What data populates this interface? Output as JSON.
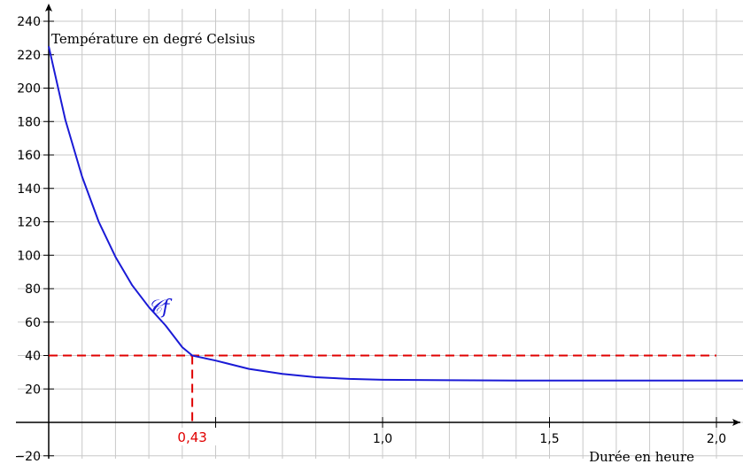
{
  "chart_data": {
    "type": "line",
    "title": "",
    "xlabel": "Durée en heure",
    "ylabel": "Température en degré Celsius",
    "xlim": [
      0,
      2.1
    ],
    "ylim": [
      -20,
      240
    ],
    "grid": true,
    "x_ticks": [
      {
        "value": 0.5,
        "label": ""
      },
      {
        "value": 1.0,
        "label": "1,0"
      },
      {
        "value": 1.5,
        "label": "1,5"
      },
      {
        "value": 2.0,
        "label": "2,0"
      }
    ],
    "y_ticks": [
      {
        "value": -20,
        "label": "−20"
      },
      {
        "value": 20,
        "label": "20"
      },
      {
        "value": 40,
        "label": "40"
      },
      {
        "value": 60,
        "label": "60"
      },
      {
        "value": 80,
        "label": "80"
      },
      {
        "value": 100,
        "label": "100"
      },
      {
        "value": 120,
        "label": "120"
      },
      {
        "value": 140,
        "label": "140"
      },
      {
        "value": 160,
        "label": "160"
      },
      {
        "value": 180,
        "label": "180"
      },
      {
        "value": 200,
        "label": "200"
      },
      {
        "value": 220,
        "label": "220"
      },
      {
        "value": 240,
        "label": "240"
      }
    ],
    "series": [
      {
        "name": "𝒞f",
        "color": "#1a1ad6",
        "x": [
          0,
          0.05,
          0.1,
          0.15,
          0.2,
          0.25,
          0.3,
          0.35,
          0.4,
          0.43,
          0.5,
          0.6,
          0.7,
          0.8,
          0.9,
          1.0,
          1.2,
          1.4,
          1.6,
          1.8,
          2.0,
          2.1
        ],
        "y": [
          225,
          181,
          147,
          120,
          99,
          82,
          69,
          58,
          45,
          40,
          37,
          32,
          29,
          27,
          26,
          25.5,
          25.2,
          25,
          25,
          25,
          25,
          25
        ]
      }
    ],
    "annotations": [
      {
        "type": "hline",
        "y": 40,
        "x_end": 2.0,
        "color": "#e00000",
        "style": "dashed"
      },
      {
        "type": "vline",
        "x": 0.43,
        "y_end": 40,
        "color": "#e00000",
        "style": "dashed"
      },
      {
        "type": "x_label",
        "x": 0.43,
        "text": "0,43",
        "color": "#e00000"
      }
    ]
  }
}
